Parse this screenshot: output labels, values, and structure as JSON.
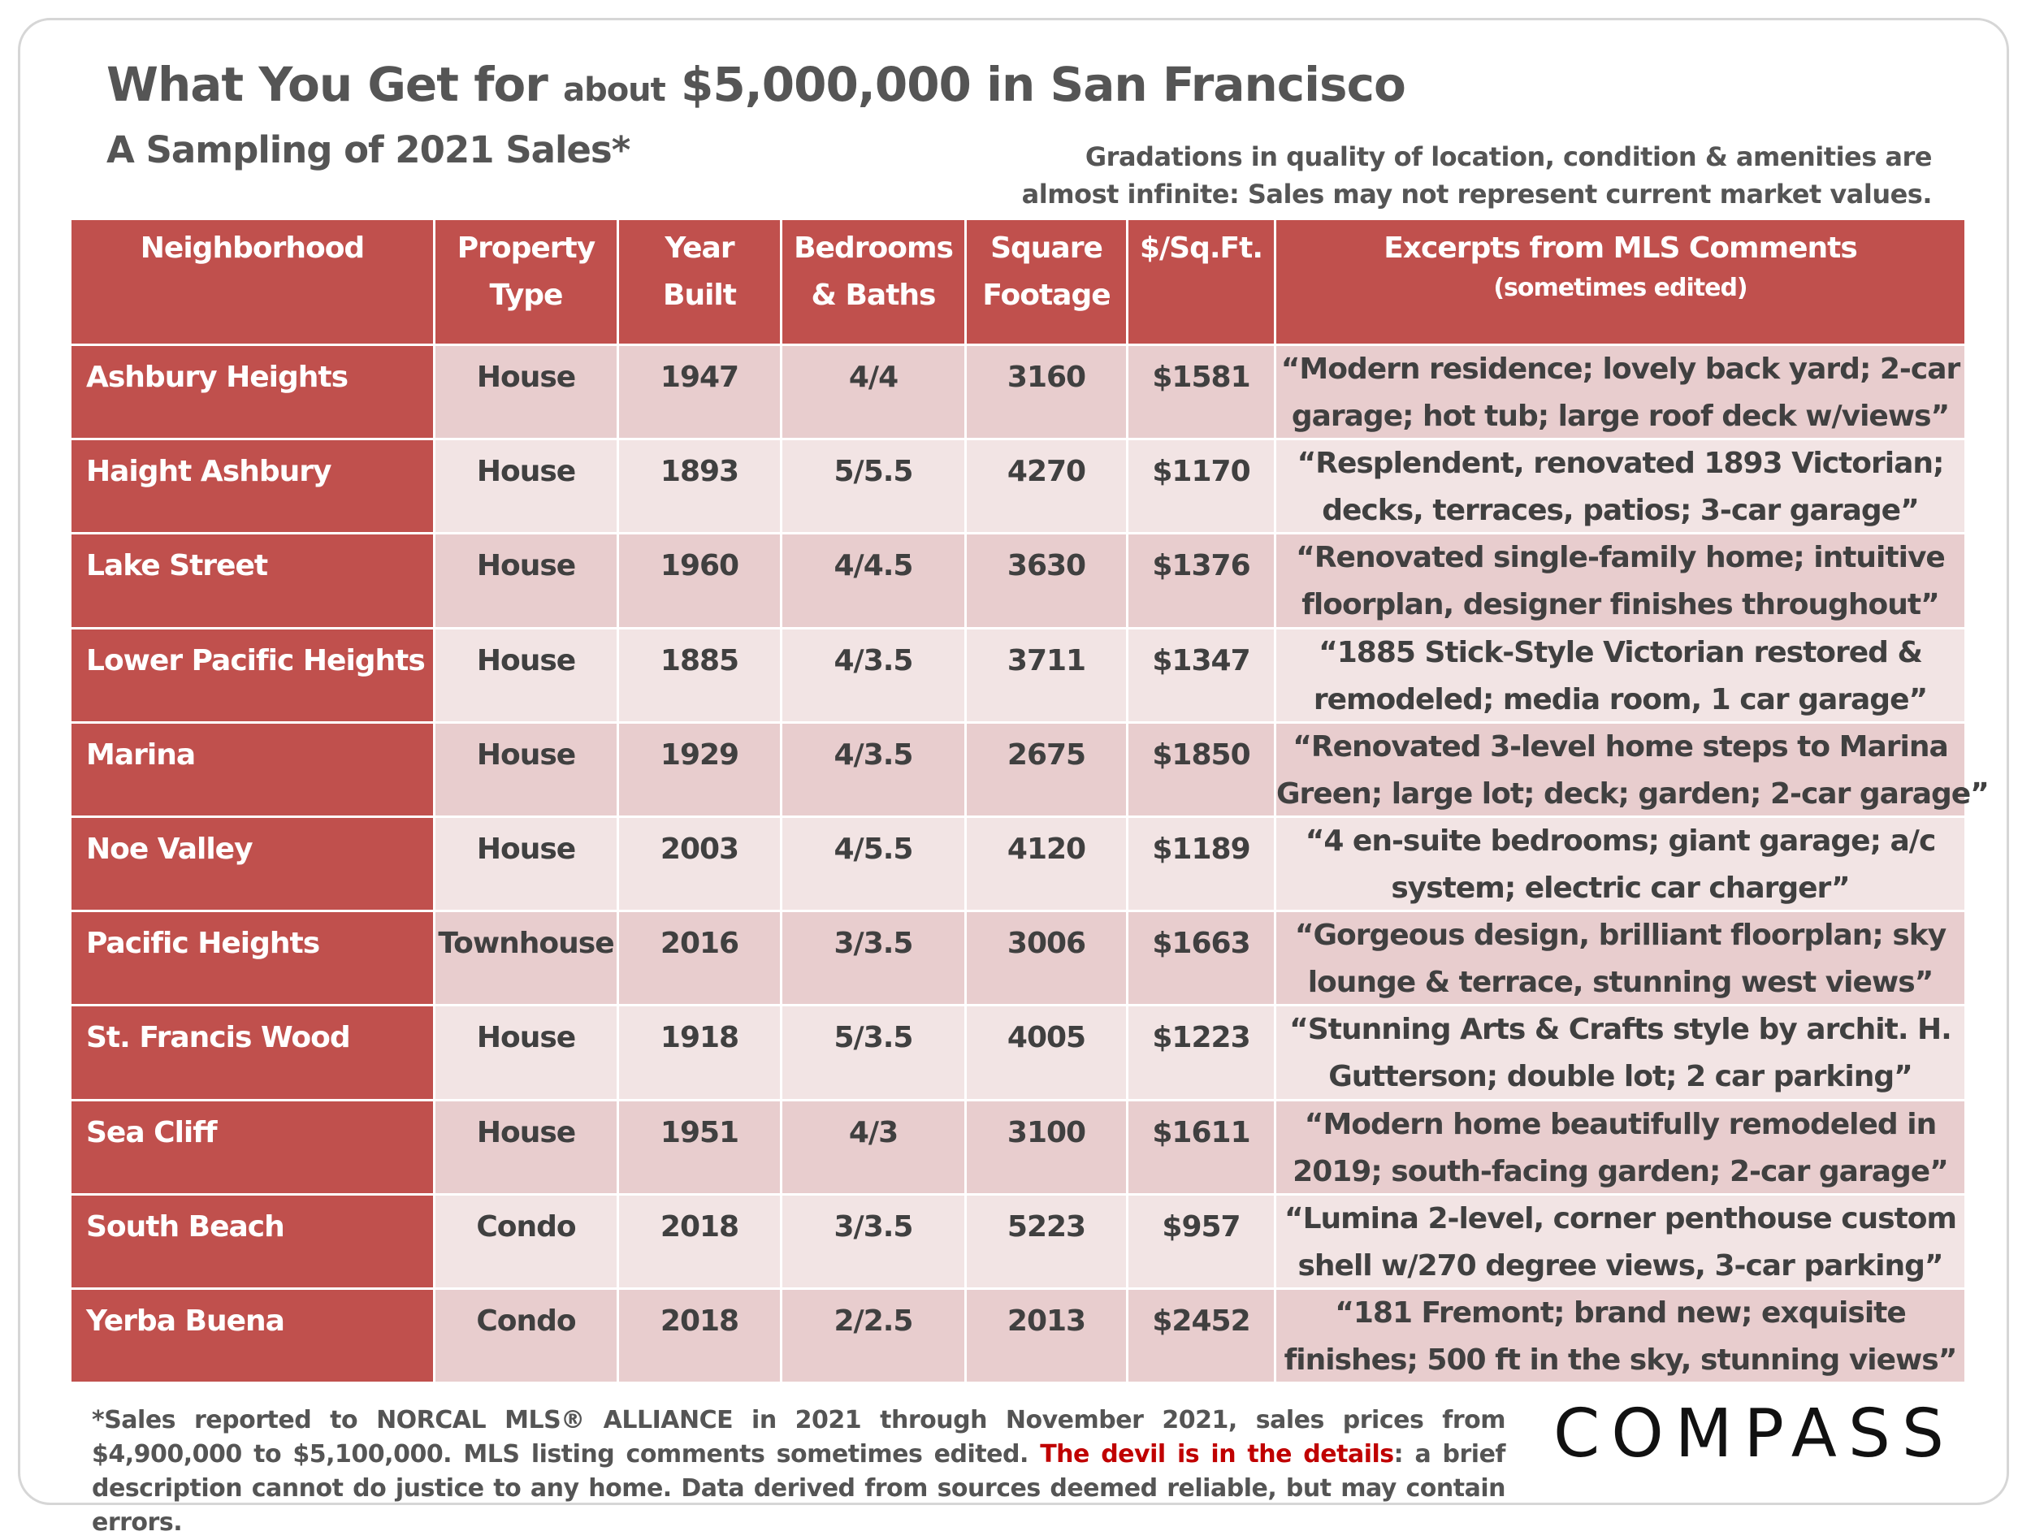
{
  "header": {
    "title": {
      "before": "What You Get for",
      "small": "about",
      "after": "$5,000,000 in San Francisco"
    },
    "subtitle": "A Sampling of 2021 Sales*",
    "note": [
      "Gradations in quality of location, condition & amenities are",
      "almost infinite: Sales may not represent current market values."
    ]
  },
  "table": {
    "columns": [
      [
        "Neighborhood"
      ],
      [
        "Property",
        "Type"
      ],
      [
        "Year",
        "Built"
      ],
      [
        "Bedrooms",
        "& Baths"
      ],
      [
        "Square",
        "Footage"
      ],
      [
        "$/Sq.Ft."
      ],
      [
        "Excerpts from MLS Comments"
      ]
    ],
    "column_note": "(sometimes edited)",
    "rows": [
      [
        "Ashbury Heights",
        "House",
        "1947",
        "4/4",
        "3160",
        "$1581",
        [
          "“Modern residence; lovely back yard; 2-car",
          "garage; hot tub; large roof deck w/views”"
        ]
      ],
      [
        "Haight Ashbury",
        "House",
        "1893",
        "5/5.5",
        "4270",
        "$1170",
        [
          "“Resplendent, renovated 1893 Victorian;",
          "decks, terraces, patios; 3-car garage”"
        ]
      ],
      [
        "Lake Street",
        "House",
        "1960",
        "4/4.5",
        "3630",
        "$1376",
        [
          "“Renovated single-family home; intuitive",
          "floorplan, designer finishes throughout”"
        ]
      ],
      [
        "Lower Pacific Heights",
        "House",
        "1885",
        "4/3.5",
        "3711",
        "$1347",
        [
          "“1885 Stick-Style Victorian restored &",
          "remodeled; media room, 1 car garage”"
        ]
      ],
      [
        "Marina",
        "House",
        "1929",
        "4/3.5",
        "2675",
        "$1850",
        [
          "“Renovated 3-level home steps to Marina",
          "Green; large lot; deck; garden; 2-car garage”"
        ]
      ],
      [
        "Noe Valley",
        "House",
        "2003",
        "4/5.5",
        "4120",
        "$1189",
        [
          "“4 en-suite bedrooms; giant garage; a/c",
          "system; electric car charger”"
        ]
      ],
      [
        "Pacific Heights",
        "Townhouse",
        "2016",
        "3/3.5",
        "3006",
        "$1663",
        [
          "“Gorgeous design, brilliant floorplan; sky",
          "lounge & terrace, stunning west views”"
        ]
      ],
      [
        "St. Francis Wood",
        "House",
        "1918",
        "5/3.5",
        "4005",
        "$1223",
        [
          "“Stunning Arts & Crafts style by archit. H.",
          "Gutterson; double lot; 2 car parking”"
        ]
      ],
      [
        "Sea Cliff",
        "House",
        "1951",
        "4/3",
        "3100",
        "$1611",
        [
          "“Modern home beautifully remodeled in",
          "2019; south-facing garden; 2-car garage”"
        ]
      ],
      [
        "South Beach",
        "Condo",
        "2018",
        "3/3.5",
        "5223",
        "$957",
        [
          "“Lumina 2-level, corner penthouse custom",
          "shell w/270 degree views, 3-car parking”"
        ]
      ],
      [
        "Yerba Buena",
        "Condo",
        "2018",
        "2/2.5",
        "2013",
        "$2452",
        [
          "“181 Fremont; brand new; exquisite",
          "finishes; 500 ft in the sky, stunning views”"
        ]
      ]
    ]
  },
  "footer": {
    "before": "*Sales reported to NORCAL MLS® ALLIANCE in 2021 through November 2021, sales prices from $4,900,000 to $5,100,000. MLS listing comments sometimes edited.",
    "highlight": "The devil is in the details",
    "after": ": a brief description cannot do justice to any home. Data derived from sources deemed reliable, but may contain errors."
  },
  "logo": "COMPASS"
}
